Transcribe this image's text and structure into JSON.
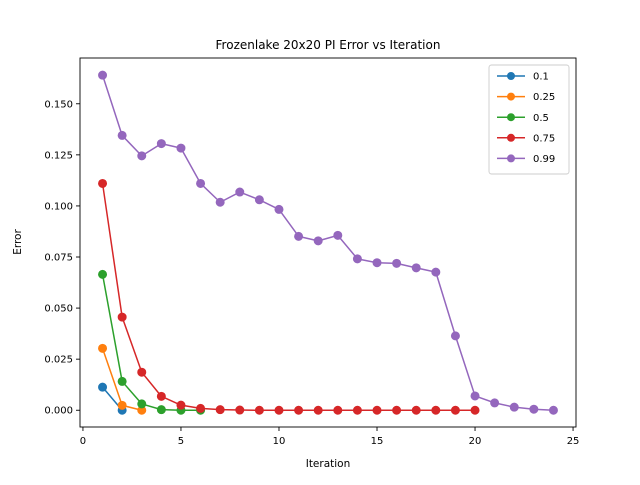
{
  "chart_data": {
    "type": "line",
    "title": "Frozenlake 20x20 PI Error vs Iteration",
    "xlabel": "Iteration",
    "ylabel": "Error",
    "xlim": [
      -0.15,
      25.15
    ],
    "ylim": [
      -0.0082,
      0.1724
    ],
    "xticks": [
      0,
      5,
      10,
      15,
      20,
      25
    ],
    "xtick_labels": [
      "0",
      "5",
      "10",
      "15",
      "20",
      "25"
    ],
    "yticks": [
      0.0,
      0.025,
      0.05,
      0.075,
      0.1,
      0.125,
      0.15
    ],
    "ytick_labels": [
      "0.000",
      "0.025",
      "0.050",
      "0.075",
      "0.100",
      "0.125",
      "0.150"
    ],
    "grid": false,
    "legend_position": "top-right",
    "marker": "circle",
    "series": [
      {
        "name": "0.1",
        "color": "#1f77b4",
        "x": [
          1,
          2
        ],
        "values": [
          0.0113,
          0.0
        ]
      },
      {
        "name": "0.25",
        "color": "#ff7f0e",
        "x": [
          1,
          2,
          3
        ],
        "values": [
          0.0303,
          0.0024,
          0.0
        ]
      },
      {
        "name": "0.5",
        "color": "#2ca02c",
        "x": [
          1,
          2,
          3,
          4,
          5,
          6
        ],
        "values": [
          0.0665,
          0.0141,
          0.0031,
          0.0003,
          0.0,
          0.0
        ]
      },
      {
        "name": "0.75",
        "color": "#d62728",
        "x": [
          1,
          2,
          3,
          4,
          5,
          6,
          7,
          8,
          9,
          10,
          11,
          12,
          13,
          14,
          15,
          16,
          17,
          18,
          19,
          20
        ],
        "values": [
          0.111,
          0.0456,
          0.0186,
          0.0068,
          0.0025,
          0.0009,
          0.0003,
          0.0001,
          0.0,
          0.0,
          0.0,
          0.0,
          0.0,
          0.0,
          0.0,
          0.0,
          0.0,
          0.0,
          0.0,
          0.0
        ]
      },
      {
        "name": "0.99",
        "color": "#9467bd",
        "x": [
          1,
          2,
          3,
          4,
          5,
          6,
          7,
          8,
          9,
          10,
          11,
          12,
          13,
          14,
          15,
          16,
          17,
          18,
          19,
          20,
          21,
          22,
          23,
          24
        ],
        "values": [
          0.164,
          0.1345,
          0.1245,
          0.1305,
          0.1283,
          0.111,
          0.1018,
          0.1068,
          0.103,
          0.0983,
          0.0851,
          0.0829,
          0.0856,
          0.0741,
          0.0722,
          0.0719,
          0.0697,
          0.0676,
          0.0364,
          0.007,
          0.0036,
          0.0015,
          0.0005,
          0.0
        ]
      }
    ]
  }
}
